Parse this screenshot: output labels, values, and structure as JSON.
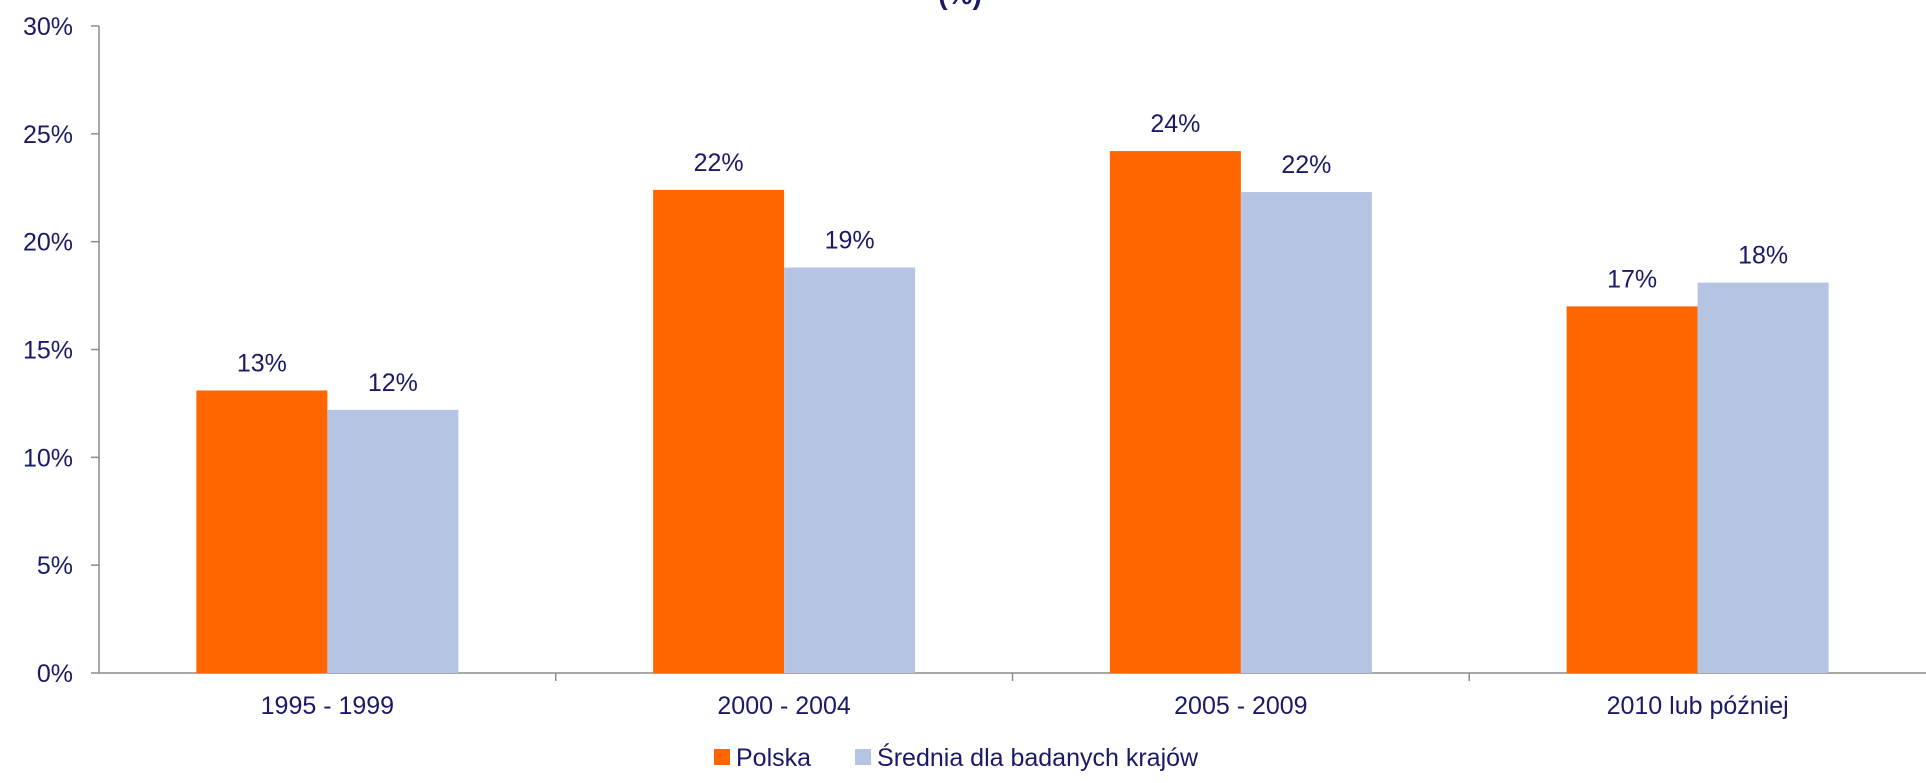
{
  "chart_data": {
    "type": "bar",
    "title": "(%)",
    "categories": [
      "1995 - 1999",
      "2000 - 2004",
      "2005 - 2009",
      "2010 lub później"
    ],
    "series": [
      {
        "name": "Polska",
        "color": "#ff6600",
        "values": [
          13.1,
          22.4,
          24.2,
          17.0
        ],
        "labels": [
          "13%",
          "22%",
          "24%",
          "17%"
        ]
      },
      {
        "name": "Średnia dla badanych krajów",
        "color": "#b4c4e2",
        "values": [
          12.2,
          18.8,
          22.3,
          18.1
        ],
        "labels": [
          "12%",
          "19%",
          "22%",
          "18%"
        ]
      }
    ],
    "ylim": [
      0,
      30
    ],
    "yticks": [
      0,
      5,
      10,
      15,
      20,
      25,
      30
    ],
    "ytick_labels": [
      "0%",
      "5%",
      "10%",
      "15%",
      "20%",
      "25%",
      "30%"
    ],
    "xlabel": "",
    "ylabel": "",
    "grid": false,
    "legend_position": "bottom-center"
  }
}
